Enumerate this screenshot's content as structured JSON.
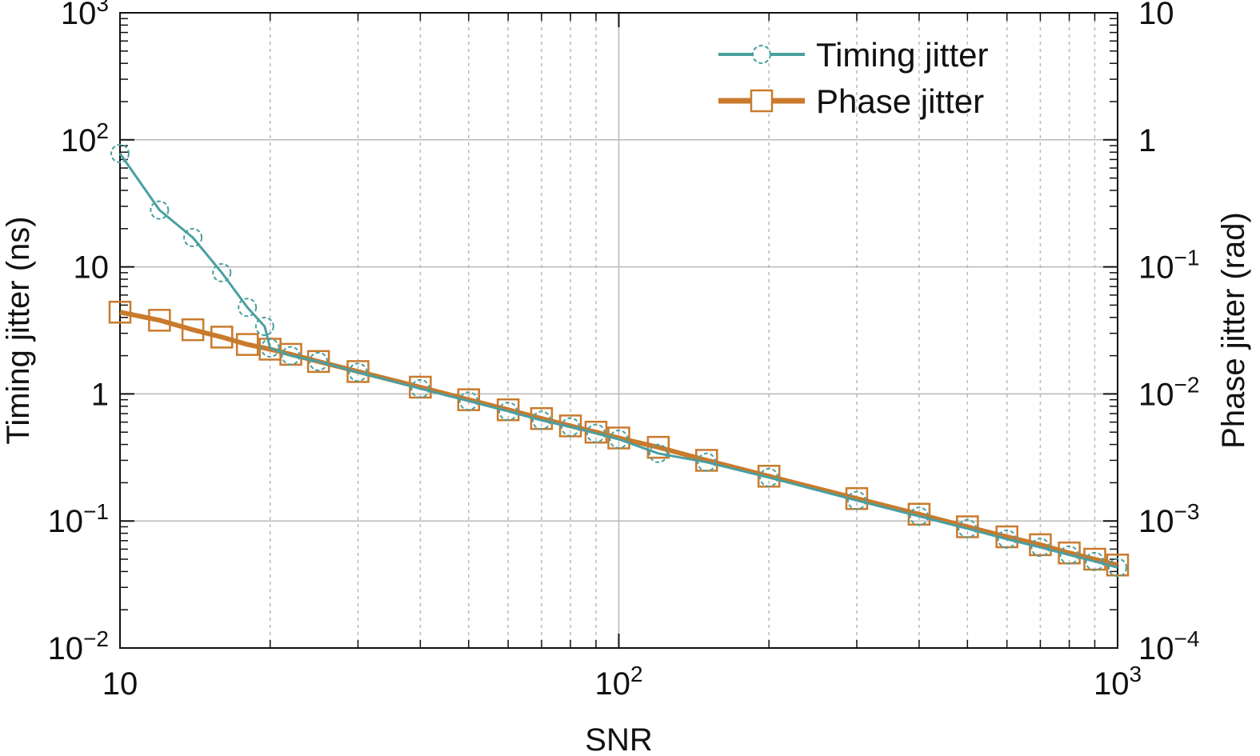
{
  "chart_data": {
    "type": "line",
    "xlabel": "SNR",
    "ylabel_left": "Timing jitter (ns)",
    "ylabel_right": "Phase jitter (rad)",
    "x_scale": "log",
    "y_scale": "log",
    "xlim": [
      10,
      1000
    ],
    "ylim_left": [
      0.01,
      1000
    ],
    "ylim_right": [
      0.0001,
      10
    ],
    "grid": true,
    "legend_position": "top-right",
    "x_ticks": [
      {
        "value": 10,
        "base": "10",
        "exp": ""
      },
      {
        "value": 100,
        "base": "10",
        "exp": "2"
      },
      {
        "value": 1000,
        "base": "10",
        "exp": "3"
      }
    ],
    "y_ticks_left": [
      {
        "value": 0.01,
        "base": "10",
        "exp": "−2"
      },
      {
        "value": 0.1,
        "base": "10",
        "exp": "−1"
      },
      {
        "value": 1,
        "base": "1",
        "exp": ""
      },
      {
        "value": 10,
        "base": "10",
        "exp": ""
      },
      {
        "value": 100,
        "base": "10",
        "exp": "2"
      },
      {
        "value": 1000,
        "base": "10",
        "exp": "3"
      }
    ],
    "y_ticks_right": [
      {
        "value": 0.0001,
        "base": "10",
        "exp": "−4"
      },
      {
        "value": 0.001,
        "base": "10",
        "exp": "−3"
      },
      {
        "value": 0.01,
        "base": "10",
        "exp": "−2"
      },
      {
        "value": 0.1,
        "base": "10",
        "exp": "−1"
      },
      {
        "value": 1,
        "base": "1",
        "exp": ""
      },
      {
        "value": 10,
        "base": "10",
        "exp": ""
      }
    ],
    "series": [
      {
        "name": "Timing jitter",
        "axis": "left",
        "color": "#4a9fa0",
        "marker": "circle",
        "x": [
          10,
          12,
          14,
          16,
          18,
          19.5,
          20,
          22,
          25,
          30,
          40,
          50,
          60,
          70,
          80,
          90,
          100,
          120,
          150,
          200,
          300,
          400,
          500,
          600,
          700,
          800,
          900,
          1000
        ],
        "y": [
          78,
          28,
          17,
          9,
          4.8,
          3.4,
          2.3,
          2.0,
          1.8,
          1.48,
          1.1,
          0.88,
          0.73,
          0.62,
          0.55,
          0.49,
          0.44,
          0.34,
          0.29,
          0.22,
          0.145,
          0.109,
          0.087,
          0.072,
          0.062,
          0.054,
          0.048,
          0.043
        ]
      },
      {
        "name": "Phase jitter",
        "axis": "right",
        "color": "#c97a2c",
        "marker": "square",
        "x": [
          10,
          12,
          14,
          16,
          18,
          20,
          22,
          25,
          30,
          40,
          50,
          60,
          70,
          80,
          90,
          100,
          120,
          150,
          200,
          300,
          400,
          500,
          600,
          700,
          800,
          900,
          1000
        ],
        "y": [
          0.044,
          0.038,
          0.032,
          0.028,
          0.0245,
          0.0225,
          0.0205,
          0.018,
          0.015,
          0.0113,
          0.009,
          0.0075,
          0.0064,
          0.0056,
          0.005,
          0.0045,
          0.0038,
          0.003,
          0.00225,
          0.0015,
          0.00113,
          0.0009,
          0.00075,
          0.00065,
          0.00056,
          0.0005,
          0.00045
        ]
      }
    ]
  }
}
